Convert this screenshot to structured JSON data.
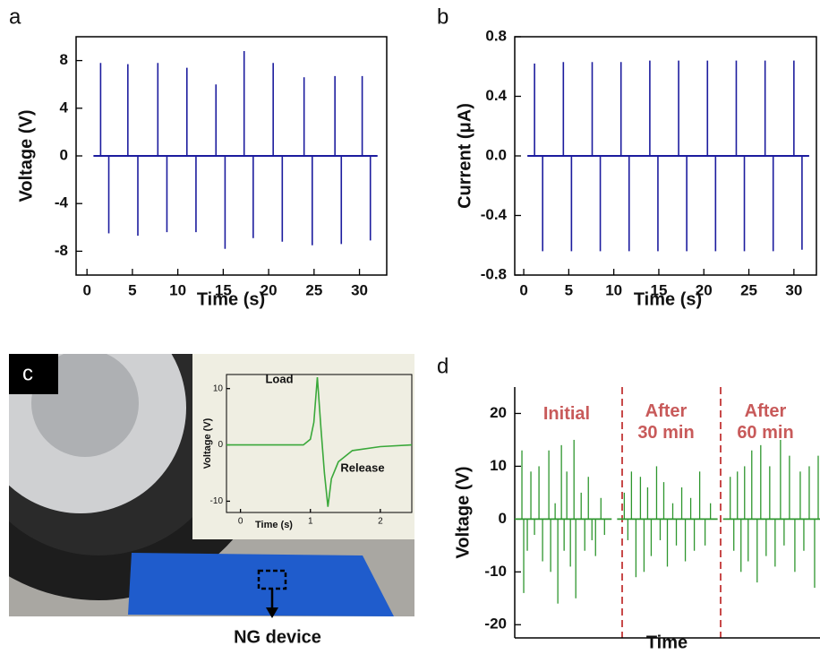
{
  "chart_data": [
    {
      "type": "spike",
      "panel": "a",
      "xlabel": "Time (s)",
      "ylabel": "Voltage (V)",
      "color": "#1c1c9e",
      "xlim": [
        -1.2,
        33
      ],
      "ylim": [
        -10,
        10
      ],
      "xticks": [
        0,
        5,
        10,
        15,
        20,
        25,
        30
      ],
      "yticks": [
        -8,
        -4,
        0,
        4,
        8
      ],
      "segments": [
        {
          "x": [
            1.5,
            2.4,
            4.5,
            5.6,
            7.8,
            8.8,
            11,
            12,
            14.2,
            15.2,
            17.3,
            18.3,
            20.5,
            21.5,
            23.9,
            24.8,
            27.3,
            28,
            30.3,
            31.2
          ],
          "values": [
            7.8,
            -6.5,
            7.7,
            -6.7,
            7.8,
            -6.4,
            7.4,
            -6.4,
            6.0,
            -7.8,
            8.8,
            -6.9,
            7.8,
            -7.2,
            6.6,
            -7.5,
            6.7,
            -7.4,
            6.7,
            -7.1
          ]
        }
      ]
    },
    {
      "type": "spike",
      "panel": "b",
      "xlabel": "Time (s)",
      "ylabel": "Current (μA)",
      "color": "#1c1c9e",
      "xlim": [
        -1,
        32.5
      ],
      "ylim": [
        -0.8,
        0.8
      ],
      "xticks": [
        0,
        5,
        10,
        15,
        20,
        25,
        30
      ],
      "yticks": [
        -0.8,
        -0.4,
        {
          "value": 0,
          "label": "0.0"
        },
        0.4,
        0.8
      ],
      "segments": [
        {
          "x": [
            1.2,
            2.1,
            4.4,
            5.3,
            7.6,
            8.5,
            10.8,
            11.7,
            14.0,
            14.9,
            17.2,
            18.1,
            20.4,
            21.3,
            23.6,
            24.5,
            26.8,
            27.7,
            30.0,
            30.9
          ],
          "values": [
            0.62,
            -0.64,
            0.63,
            -0.64,
            0.63,
            -0.64,
            0.63,
            -0.64,
            0.64,
            -0.64,
            0.64,
            -0.64,
            0.64,
            -0.64,
            0.64,
            -0.64,
            0.64,
            -0.64,
            0.64,
            -0.63
          ]
        }
      ]
    },
    {
      "type": "line",
      "panel": "c",
      "xlabel": "Time (s)",
      "ylabel": "Voltage (V)",
      "color": "#3aa83a",
      "annotations": [
        "Load",
        "Release"
      ],
      "device_label": "NG device",
      "xlim": [
        -0.2,
        2.45
      ],
      "ylim": [
        -12,
        12.5
      ],
      "xticks": [
        0,
        1,
        2
      ],
      "yticks": [
        -10,
        0,
        10
      ],
      "x": [
        -0.2,
        0.9,
        1.0,
        1.05,
        1.1,
        1.15,
        1.2,
        1.25,
        1.3,
        1.4,
        1.6,
        2.0,
        2.45
      ],
      "values": [
        0,
        0,
        1,
        4,
        12,
        3,
        -5,
        -11,
        -6,
        -3,
        -1,
        -0.3,
        0
      ]
    },
    {
      "type": "spike",
      "panel": "d",
      "xlabel": "Time",
      "ylabel": "Voltage (V)",
      "color": "#2e962e",
      "annotations": [
        "Initial",
        "After\n30 min",
        "After\n60 min"
      ],
      "xlim": [
        0,
        340
      ],
      "ylim": [
        -22.5,
        25
      ],
      "yticks": [
        -20,
        -10,
        0,
        10,
        20
      ],
      "segments": [
        {
          "x": [
            8,
            10,
            14,
            18,
            22,
            27,
            31,
            38,
            40,
            45,
            48,
            52,
            55,
            58,
            62,
            66,
            68,
            74,
            78,
            82,
            86,
            90,
            96,
            100
          ],
          "values": [
            13,
            -14,
            -6,
            9,
            -3,
            10,
            -8,
            13,
            -10,
            3,
            -16,
            14,
            -6,
            9,
            -9,
            15,
            -15,
            5,
            -6,
            8,
            -4,
            -7,
            4,
            -3
          ]
        },
        {
          "x": [
            122,
            126,
            130,
            135,
            140,
            144,
            148,
            152,
            158,
            162,
            166,
            170,
            176,
            180,
            186,
            190,
            196,
            200,
            206,
            212,
            218
          ],
          "values": [
            5,
            -4,
            9,
            -11,
            8,
            -10,
            6,
            -7,
            10,
            -4,
            7,
            -9,
            3,
            -5,
            6,
            -8,
            4,
            -6,
            9,
            -5,
            3
          ]
        },
        {
          "x": [
            240,
            244,
            248,
            252,
            256,
            260,
            264,
            270,
            274,
            280,
            284,
            290,
            296,
            300,
            306,
            312,
            318,
            322,
            328,
            334,
            338
          ],
          "values": [
            8,
            -6,
            9,
            -10,
            10,
            -8,
            13,
            -12,
            14,
            -7,
            10,
            -9,
            15,
            -5,
            12,
            -10,
            9,
            -6,
            10,
            -13,
            12
          ]
        }
      ]
    }
  ]
}
